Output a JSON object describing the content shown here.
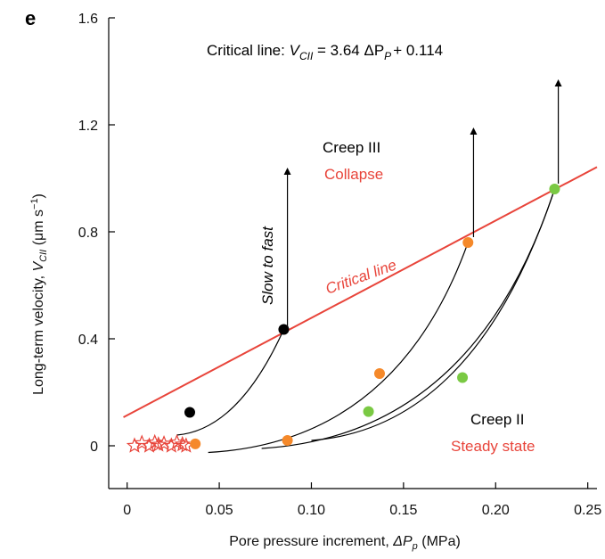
{
  "chart_data": {
    "type": "scatter",
    "panel_label": "e",
    "title": "",
    "xlabel": {
      "prefix": "Pore pressure increment, ",
      "symbol": "ΔP",
      "sub": "p",
      "suffix": " (MPa)"
    },
    "ylabel": {
      "prefix": "Long-term velocity, ",
      "symbol": "V",
      "sub": "CII",
      "suffix": " (μm s",
      "sup": "−1",
      "close": ")"
    },
    "xlim": [
      -0.01,
      0.255
    ],
    "ylim": [
      -0.16,
      1.6
    ],
    "x_ticks": [
      0,
      0.05,
      0.1,
      0.15,
      0.2,
      0.25
    ],
    "x_tick_labels": [
      "0",
      "0.05",
      "0.10",
      "0.15",
      "0.20",
      "0.25"
    ],
    "y_ticks": [
      0,
      0.4,
      0.8,
      1.2,
      1.6
    ],
    "y_tick_labels": [
      "0",
      "0.4",
      "0.8",
      "1.2",
      "1.6"
    ],
    "grid": false,
    "critical_line": {
      "slope": 3.64,
      "intercept": 0.114,
      "x_range": [
        -0.002,
        0.255
      ],
      "color": "#e8443a",
      "label": "Critical line",
      "equation": {
        "prefix": "Critical line: ",
        "lhs": "V",
        "lhs_sub": "CII",
        "mid": " = 3.64 ΔP",
        "mid_sub": "P",
        "rhs": "+ 0.114"
      }
    },
    "series": [
      {
        "color": "#000000",
        "points": [
          [
            0.034,
            0.125
          ],
          [
            0.085,
            0.435
          ]
        ]
      },
      {
        "color": "#f5892a",
        "points": [
          [
            0.037,
            0.007
          ],
          [
            0.087,
            0.02
          ],
          [
            0.137,
            0.27
          ],
          [
            0.185,
            0.76
          ]
        ]
      },
      {
        "color": "#7ac943",
        "points": [
          [
            0.131,
            0.128
          ],
          [
            0.182,
            0.255
          ],
          [
            0.232,
            0.96
          ]
        ]
      }
    ],
    "stars": {
      "color": "#e8443a",
      "x": [
        0.004,
        0.008,
        0.012,
        0.015,
        0.017,
        0.02,
        0.024,
        0.027,
        0.03,
        0.032
      ],
      "y": [
        0.0,
        0.01,
        0.0,
        0.012,
        0.004,
        0.008,
        0.0,
        0.012,
        0.005,
        0.0
      ]
    },
    "curves": [
      {
        "from": [
          0.027,
          0.04
        ],
        "to": [
          0.085,
          0.435
        ],
        "bend": 0.25
      },
      {
        "from": [
          0.044,
          -0.025
        ],
        "to": [
          0.185,
          0.76
        ],
        "bend": 0.55
      },
      {
        "from": [
          0.073,
          -0.01
        ],
        "to": [
          0.232,
          0.96
        ],
        "bend": 0.55
      },
      {
        "from": [
          0.1,
          0.02
        ],
        "to": [
          0.232,
          0.96
        ],
        "bend": 0.45
      }
    ],
    "arrows": [
      {
        "x": 0.087,
        "from": 0.44,
        "to": 1.04
      },
      {
        "x": 0.188,
        "from": 0.78,
        "to": 1.19
      },
      {
        "x": 0.234,
        "from": 0.98,
        "to": 1.37
      }
    ],
    "annotations": {
      "creep3": "Creep III",
      "collapse": "Collapse",
      "creep2": "Creep II",
      "steady": "Steady state",
      "slow_to_fast": "Slow to fast"
    },
    "colors": {
      "black": "#000000",
      "red": "#e8443a",
      "orange": "#f5892a",
      "green": "#7ac943"
    }
  }
}
